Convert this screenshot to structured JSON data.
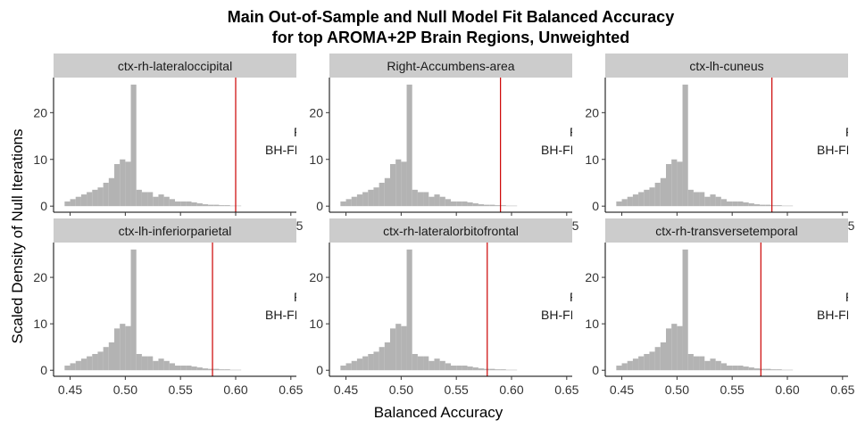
{
  "chart_data": {
    "type": "bar",
    "title": "Main Out-of-Sample and Null Model Fit Balanced Accuracy",
    "subtitle": "for top AROMA+2P Brain Regions, Unweighted",
    "xlabel": "Balanced Accuracy",
    "ylabel": "Scaled Density of Null Iterations",
    "xlim": [
      0.435,
      0.655
    ],
    "ylim": [
      -1.3,
      27.5
    ],
    "x_ticks": [
      "0.45",
      "0.50",
      "0.55",
      "0.60",
      "0.65"
    ],
    "y_ticks": [
      "0",
      "10",
      "20"
    ],
    "bin_width": 0.005,
    "bin_start": 0.445,
    "colors": {
      "histogram": "#b3b3b3",
      "observed_line": "#cc0000",
      "strip": "#cccccc"
    },
    "panels": [
      {
        "region": "ctx-rh-lateraloccipital",
        "observed": 0.6,
        "annotation": [
          "P",
          "BH-FI"
        ],
        "counts": [
          1,
          1.5,
          2,
          2.5,
          3,
          3.5,
          4,
          5,
          6,
          9,
          10,
          9.5,
          26,
          3.5,
          3,
          3,
          2,
          2.5,
          2,
          1.5,
          1,
          1,
          1,
          0.8,
          0.6,
          0.4,
          0.3,
          0.3,
          0.2,
          0.2,
          0.1,
          0.1
        ]
      },
      {
        "region": "Right-Accumbens-area",
        "observed": 0.59,
        "annotation": [
          "P",
          "BH-FI"
        ],
        "counts": [
          1,
          1.5,
          2,
          2.5,
          3,
          3.5,
          4,
          5,
          6,
          9,
          10,
          9.5,
          26,
          3.5,
          3,
          3,
          2,
          2.5,
          2,
          1.5,
          1,
          1,
          1,
          0.8,
          0.6,
          0.4,
          0.3,
          0.3,
          0.2,
          0.2,
          0.1,
          0.1
        ]
      },
      {
        "region": "ctx-lh-cuneus",
        "observed": 0.586,
        "annotation": [
          "P",
          "BH-FI"
        ],
        "counts": [
          1,
          1.5,
          2,
          2.5,
          3,
          3.5,
          4,
          5,
          6,
          9,
          10,
          9.5,
          26,
          3.5,
          3,
          3,
          2,
          2.5,
          2,
          1.5,
          1,
          1,
          1,
          0.8,
          0.6,
          0.4,
          0.3,
          0.3,
          0.2,
          0.2,
          0.1,
          0.1
        ]
      },
      {
        "region": "ctx-lh-inferiorparietal",
        "observed": 0.579,
        "annotation": [
          "P",
          "BH-FI"
        ],
        "counts": [
          1,
          1.5,
          2,
          2.5,
          3,
          3.5,
          4,
          5,
          6,
          9,
          10,
          9.5,
          26,
          3.5,
          3,
          3,
          2,
          2.5,
          2,
          1.5,
          1,
          1,
          1,
          0.8,
          0.6,
          0.4,
          0.3,
          0.3,
          0.2,
          0.2,
          0.1,
          0.1
        ]
      },
      {
        "region": "ctx-rh-lateralorbitofrontal",
        "observed": 0.578,
        "annotation": [
          "P",
          "BH-FI"
        ],
        "counts": [
          1,
          1.5,
          2,
          2.5,
          3,
          3.5,
          4,
          5,
          6,
          9,
          10,
          9.5,
          26,
          3.5,
          3,
          3,
          2,
          2.5,
          2,
          1.5,
          1,
          1,
          1,
          0.8,
          0.6,
          0.4,
          0.3,
          0.3,
          0.2,
          0.2,
          0.1,
          0.1
        ]
      },
      {
        "region": "ctx-rh-transversetemporal",
        "observed": 0.576,
        "annotation": [
          "P",
          "BH-FI"
        ],
        "counts": [
          1,
          1.5,
          2,
          2.5,
          3,
          3.5,
          4,
          5,
          6,
          9,
          10,
          9.5,
          26,
          3.5,
          3,
          3,
          2,
          2.5,
          2,
          1.5,
          1,
          1,
          1,
          0.8,
          0.6,
          0.4,
          0.3,
          0.3,
          0.2,
          0.2,
          0.1,
          0.1
        ]
      }
    ]
  }
}
